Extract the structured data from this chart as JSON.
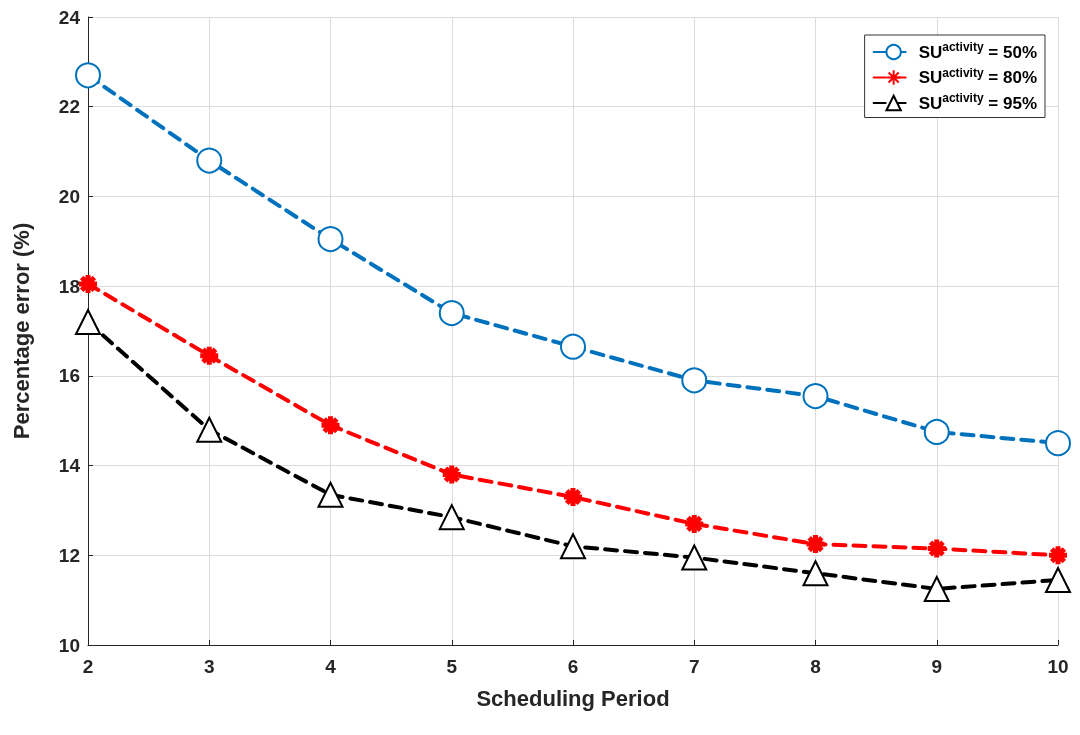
{
  "chart_data": {
    "type": "line",
    "xlabel": "Scheduling Period",
    "ylabel": "Percentage error (%)",
    "x": [
      2,
      3,
      4,
      5,
      6,
      7,
      8,
      9,
      10
    ],
    "series": [
      {
        "name": "SU$^{activity}$ = 50%",
        "color": "#0072bd",
        "marker": "circle",
        "values": [
          22.7,
          20.8,
          19.05,
          17.4,
          16.65,
          15.9,
          15.55,
          14.75,
          14.5
        ]
      },
      {
        "name": "SU$^{activity}$ = 80%",
        "color": "#ff0000",
        "marker": "cross",
        "values": [
          18.05,
          16.45,
          14.9,
          13.8,
          13.3,
          12.7,
          12.25,
          12.15,
          12.0
        ]
      },
      {
        "name": "SU$^{activity}$ = 95%",
        "color": "#000000",
        "marker": "triangle",
        "values": [
          17.2,
          14.8,
          13.35,
          12.85,
          12.2,
          11.95,
          11.6,
          11.25,
          11.45
        ]
      }
    ],
    "xlim": [
      2,
      10
    ],
    "xticks": [
      2,
      3,
      4,
      5,
      6,
      7,
      8,
      9,
      10
    ],
    "ylim": [
      10,
      24
    ],
    "yticks": [
      10,
      12,
      14,
      16,
      18,
      20,
      22,
      24
    ],
    "grid": true,
    "legend": "top right",
    "line_style": "dashed"
  }
}
